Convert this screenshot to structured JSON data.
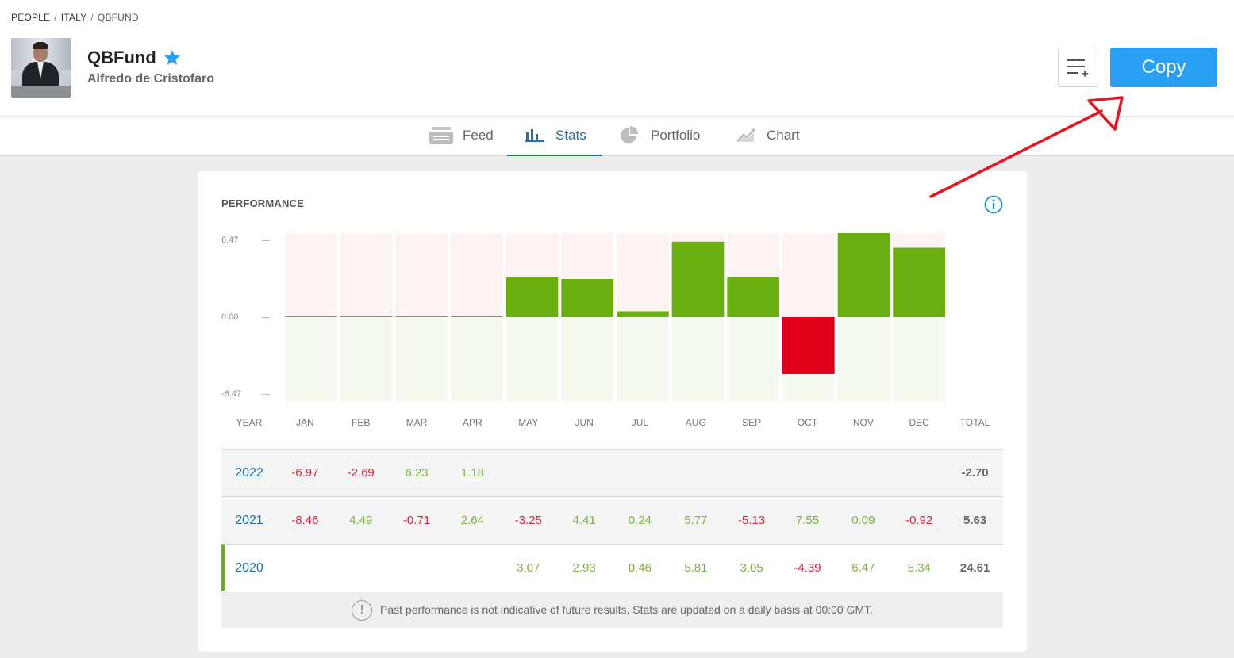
{
  "breadcrumb": [
    {
      "label": "PEOPLE"
    },
    {
      "label": "ITALY"
    },
    {
      "label": "QBFUND"
    }
  ],
  "profile": {
    "username": "QBFund",
    "full_name": "Alfredo de Cristofaro"
  },
  "actions": {
    "copy_label": "Copy"
  },
  "tabs": [
    {
      "label": "Feed",
      "icon": "feed-icon",
      "active": false
    },
    {
      "label": "Stats",
      "icon": "bar-chart-icon",
      "active": true
    },
    {
      "label": "Portfolio",
      "icon": "pie-chart-icon",
      "active": false
    },
    {
      "label": "Chart",
      "icon": "line-chart-icon",
      "active": false
    }
  ],
  "performance": {
    "title": "PERFORMANCE",
    "y_labels": [
      "6.47",
      "0.00",
      "-6.47"
    ],
    "headers": [
      "YEAR",
      "JAN",
      "FEB",
      "MAR",
      "APR",
      "MAY",
      "JUN",
      "JUL",
      "AUG",
      "SEP",
      "OCT",
      "NOV",
      "DEC",
      "TOTAL"
    ],
    "rows": [
      {
        "year": "2022",
        "values": [
          "-6.97",
          "-2.69",
          "6.23",
          "1.18",
          "",
          "",
          "",
          "",
          "",
          "",
          "",
          ""
        ],
        "total": "-2.70"
      },
      {
        "year": "2021",
        "values": [
          "-8.46",
          "4.49",
          "-0.71",
          "2.64",
          "-3.25",
          "4.41",
          "0.24",
          "5.77",
          "-5.13",
          "7.55",
          "0.09",
          "-0.92"
        ],
        "total": "5.63"
      },
      {
        "year": "2020",
        "values": [
          "",
          "",
          "",
          "",
          "3.07",
          "2.93",
          "0.46",
          "5.81",
          "3.05",
          "-4.39",
          "6.47",
          "5.34"
        ],
        "total": "24.61"
      }
    ],
    "disclaimer": "Past performance is not indicative of future results. Stats are updated on a daily basis at 00:00 GMT."
  },
  "chart_data": {
    "type": "bar",
    "categories": [
      "JAN",
      "FEB",
      "MAR",
      "APR",
      "MAY",
      "JUN",
      "JUL",
      "AUG",
      "SEP",
      "OCT",
      "NOV",
      "DEC"
    ],
    "values": [
      0,
      0,
      0,
      0,
      3.07,
      2.93,
      0.46,
      5.81,
      3.05,
      -4.39,
      6.47,
      5.34
    ],
    "ylim": [
      -6.47,
      6.47
    ],
    "colors": {
      "positive": "#6aaf0f",
      "negative": "#e0001a",
      "pos_bg": "#fdf3f2",
      "neg_bg": "#f5f9f0"
    }
  },
  "colors": {
    "accent": "#2aa0f4",
    "tab_active": "#1f6fb1",
    "positive": "#7cb342",
    "negative": "#e0253a",
    "annotation_arrow": "#e4151f"
  }
}
